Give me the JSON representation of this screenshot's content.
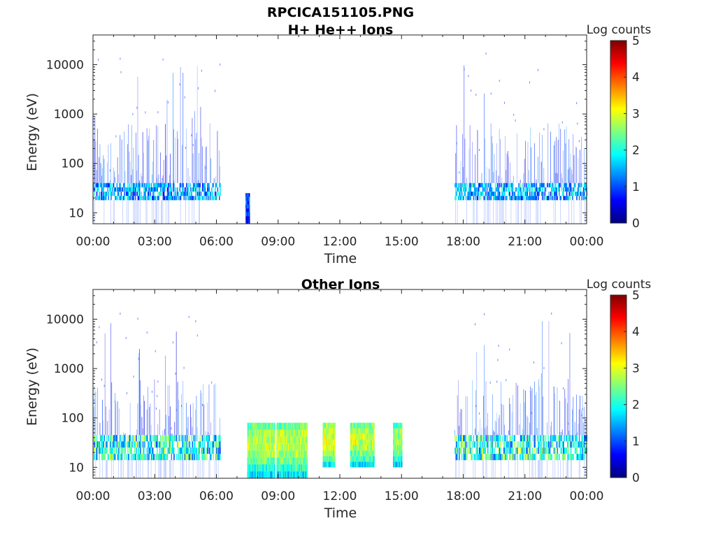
{
  "figure": {
    "title": "RPCICA151105.PNG"
  },
  "colors": {
    "axis": "#262626",
    "colormap": [
      "#00007f",
      "#0000ff",
      "#007fff",
      "#00ffff",
      "#7fff7f",
      "#ffff00",
      "#ff7f00",
      "#ff0000",
      "#7f0000"
    ]
  },
  "chart_data": [
    {
      "type": "heatmap",
      "title": "H+ He++ Ions",
      "xlabel": "Time",
      "ylabel": "Energy (eV)",
      "yscale": "log",
      "ylim": [
        6,
        40000
      ],
      "x_ticks": [
        "00:00",
        "03:00",
        "06:00",
        "09:00",
        "12:00",
        "15:00",
        "18:00",
        "21:00",
        "00:00"
      ],
      "y_ticks": [
        "10",
        "100",
        "1000",
        "10000"
      ],
      "colorbar": {
        "label": "Log counts",
        "ticks": [
          "0",
          "1",
          "2",
          "3",
          "4",
          "5"
        ],
        "range": [
          0,
          5
        ]
      },
      "activity_intervals": [
        {
          "start": "00:00",
          "end": "06:10",
          "core_energy_eV": [
            18,
            40
          ],
          "peak_log_counts": 2.0,
          "sparse_up_to_eV": 20000
        },
        {
          "start": "07:25",
          "end": "07:35",
          "core_energy_eV": [
            6,
            25
          ],
          "peak_log_counts": 1.0
        },
        {
          "start": "17:35",
          "end": "00:00",
          "core_energy_eV": [
            18,
            40
          ],
          "peak_log_counts": 2.0,
          "sparse_up_to_eV": 20000
        }
      ]
    },
    {
      "type": "heatmap",
      "title": "Other Ions",
      "xlabel": "Time",
      "ylabel": "Energy (eV)",
      "yscale": "log",
      "ylim": [
        6,
        40000
      ],
      "x_ticks": [
        "00:00",
        "03:00",
        "06:00",
        "09:00",
        "12:00",
        "15:00",
        "18:00",
        "21:00",
        "00:00"
      ],
      "y_ticks": [
        "10",
        "100",
        "1000",
        "10000"
      ],
      "colorbar": {
        "label": "Log counts",
        "ticks": [
          "0",
          "1",
          "2",
          "3",
          "4",
          "5"
        ],
        "range": [
          0,
          5
        ]
      },
      "activity_intervals": [
        {
          "start": "00:00",
          "end": "06:10",
          "core_energy_eV": [
            14,
            45
          ],
          "peak_log_counts": 2.7,
          "sparse_up_to_eV": 15000
        },
        {
          "start": "07:30",
          "end": "08:50",
          "core_energy_eV": [
            6,
            80
          ],
          "peak_log_counts": 2.8
        },
        {
          "start": "08:55",
          "end": "10:25",
          "core_energy_eV": [
            6,
            80
          ],
          "peak_log_counts": 2.8
        },
        {
          "start": "11:10",
          "end": "11:45",
          "core_energy_eV": [
            10,
            80
          ],
          "peak_log_counts": 3.0
        },
        {
          "start": "12:30",
          "end": "13:40",
          "core_energy_eV": [
            10,
            80
          ],
          "peak_log_counts": 2.8
        },
        {
          "start": "14:35",
          "end": "15:00",
          "core_energy_eV": [
            10,
            80
          ],
          "peak_log_counts": 2.6
        },
        {
          "start": "17:35",
          "end": "00:00",
          "core_energy_eV": [
            14,
            45
          ],
          "peak_log_counts": 2.8,
          "sparse_up_to_eV": 15000
        }
      ]
    }
  ]
}
